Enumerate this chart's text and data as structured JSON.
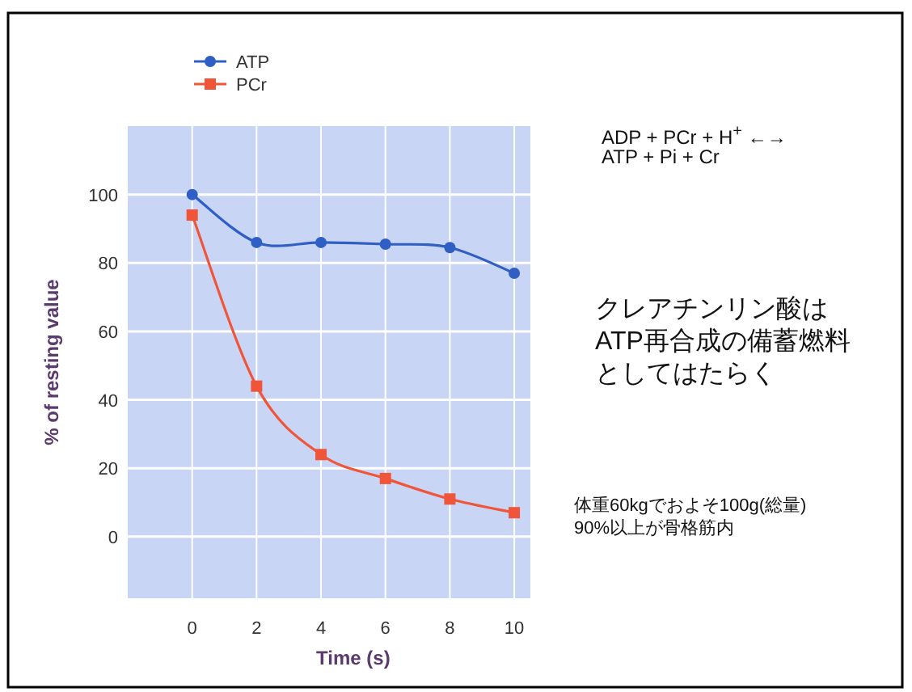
{
  "chart_data": {
    "type": "line",
    "xlabel": "Time (s)",
    "ylabel": "% of resting value",
    "x": [
      0,
      2,
      4,
      6,
      8,
      10
    ],
    "xlim": [
      -2,
      10.5
    ],
    "ylim": [
      -18,
      120
    ],
    "xticks": [
      0,
      2,
      4,
      6,
      8,
      10
    ],
    "yticks": [
      0,
      20,
      40,
      60,
      80,
      100
    ],
    "grid": true,
    "legend": "top left",
    "series": [
      {
        "name": "ATP",
        "color": "#2f5fc4",
        "marker": "circle",
        "values": [
          100,
          86,
          86,
          85.5,
          84.5,
          77
        ]
      },
      {
        "name": "PCr",
        "color": "#f0553a",
        "marker": "square",
        "values": [
          94,
          44,
          24,
          17,
          11,
          7
        ]
      }
    ],
    "annotations": [
      "ADP + PCr + H$^{+}$ ←→",
      "ATP + Pi + Cr",
      "クレアチンリン酸は",
      "ATP再合成の備蓄燃料",
      "としてはたらく",
      "体重60kgでおよそ100g(総量)",
      "90%以上が骨格筋内"
    ]
  }
}
